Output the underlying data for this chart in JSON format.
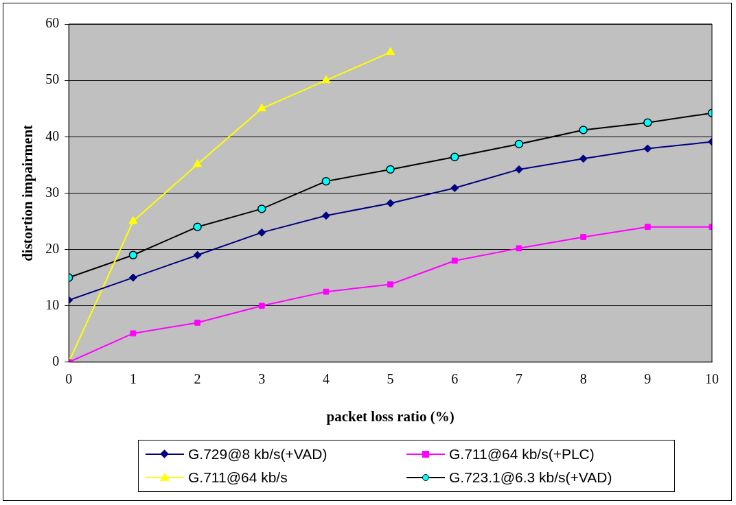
{
  "chart_data": {
    "type": "line",
    "xlabel": "packet loss ratio (%)",
    "ylabel": "distortion impairment",
    "x": [
      0,
      1,
      2,
      3,
      4,
      5,
      6,
      7,
      8,
      9,
      10
    ],
    "series": [
      {
        "name": "G.729@8 kb/s(+VAD)",
        "color": "#000080",
        "marker": "diamond",
        "values": [
          11,
          15,
          19,
          23,
          26,
          28.2,
          30.9,
          34.2,
          36.1,
          37.9,
          39.1
        ]
      },
      {
        "name": "G.711@64 kb/s(+PLC)",
        "color": "#ff00ff",
        "marker": "square",
        "values": [
          0,
          5.1,
          7,
          10,
          12.5,
          13.8,
          18,
          20.2,
          22.2,
          24,
          24
        ]
      },
      {
        "name": "G.711@64 kb/s",
        "color": "#ffff00",
        "marker": "triangle",
        "values": [
          0,
          25,
          35.1,
          45,
          50,
          55,
          null,
          null,
          null,
          null,
          null
        ]
      },
      {
        "name": "G.723.1@6.3 kb/s(+VAD)",
        "color": "#000000",
        "colors": [
          "#00ffff",
          "#00ffff",
          "#00ffff",
          "#00ffff",
          "#00ffff",
          "#00ffff",
          "#00ffff",
          "#00ffff",
          "#00ffff",
          "#00ffff",
          "#00ffff"
        ],
        "marker": "circle",
        "values": [
          15,
          19,
          24,
          27.2,
          32.1,
          34.2,
          36.4,
          38.7,
          41.2,
          42.5,
          44.2
        ]
      }
    ],
    "xlim": [
      0,
      10
    ],
    "xticks": [
      0,
      1,
      2,
      3,
      4,
      5,
      6,
      7,
      8,
      9,
      10
    ],
    "ylim": [
      0,
      60
    ],
    "yticks": [
      0,
      10,
      20,
      30,
      40,
      50,
      60
    ],
    "grid": "y",
    "legend": "bottom",
    "line_style": "solid"
  }
}
